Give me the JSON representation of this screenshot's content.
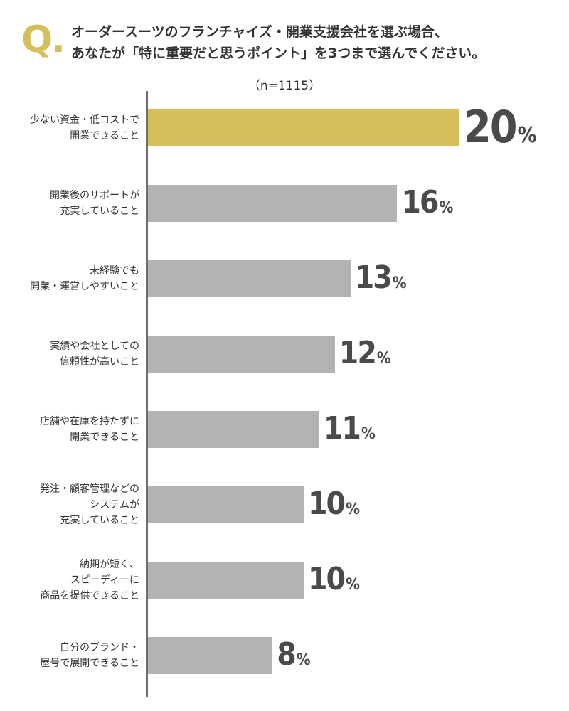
{
  "header": {
    "q_mark": "Q.",
    "question_line1": "オーダースーツのフランチャイズ・開業支援会社を選ぶ場合、",
    "question_line2": "あなたが「特に重要だと思うポイント」を3つまで選んでください。",
    "sample_size": "（n=1115）"
  },
  "colors": {
    "highlight": "#d4bf5a",
    "bar": "#b3b3b3",
    "axis": "#6e6e6e",
    "text": "#333333"
  },
  "chart_data": {
    "type": "bar",
    "orientation": "horizontal",
    "categories": [
      [
        "少ない資金・低コストで",
        "開業できること"
      ],
      [
        "開業後のサポートが",
        "充実していること"
      ],
      [
        "未経験でも",
        "開業・運営しやすいこと"
      ],
      [
        "実績や会社としての",
        "信頼性が高いこと"
      ],
      [
        "店舗や在庫を持たずに",
        "開業できること"
      ],
      [
        "発注・顧客管理などの",
        "システムが",
        "充実していること"
      ],
      [
        "納期が短く、",
        "スピーディーに",
        "商品を提供できること"
      ],
      [
        "自分のブランド・",
        "屋号で展開できること"
      ]
    ],
    "values": [
      20,
      16,
      13,
      12,
      11,
      10,
      10,
      8
    ],
    "unit": "%",
    "highlight_index": 0,
    "xlim": [
      0,
      21
    ]
  }
}
